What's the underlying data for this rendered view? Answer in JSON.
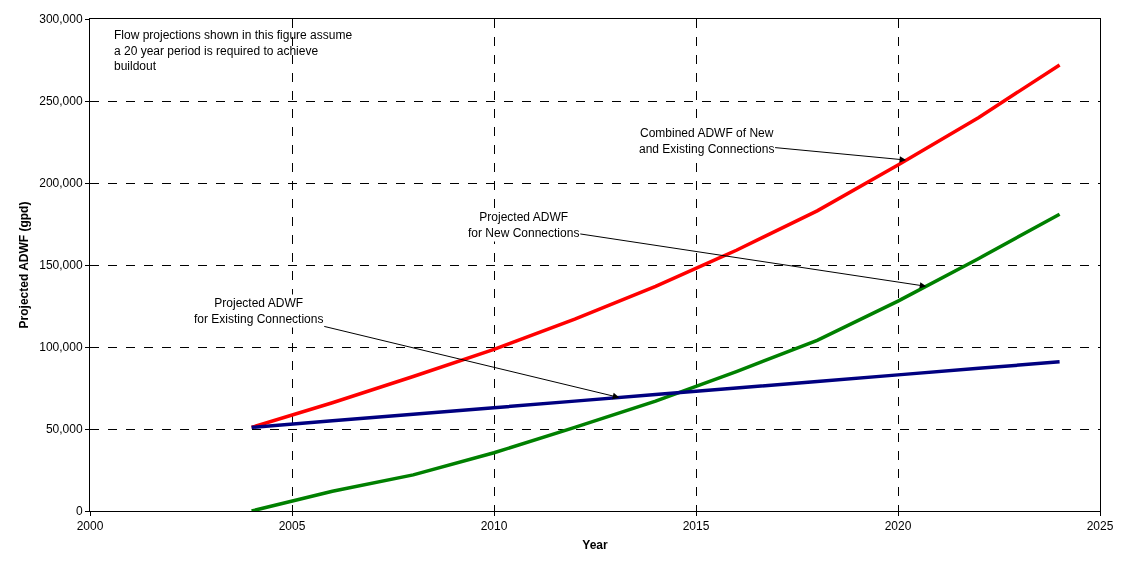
{
  "chart_data": {
    "type": "line",
    "xlabel": "Year",
    "ylabel": "Projected ADWF (gpd)",
    "x": [
      2004,
      2006,
      2008,
      2010,
      2012,
      2014,
      2016,
      2018,
      2020,
      2022,
      2024
    ],
    "series": [
      {
        "color": "#ff0000",
        "values": [
          51000,
          66000,
          82000,
          98500,
          117000,
          137000,
          159000,
          183000,
          211000,
          240000,
          272000
        ]
      },
      {
        "color": "#008000",
        "values": [
          0,
          12000,
          22000,
          35500,
          51000,
          67000,
          85000,
          104000,
          128000,
          154000,
          181000
        ]
      },
      {
        "color": "#000080",
        "values": [
          51000,
          55000,
          59000,
          63000,
          67000,
          71000,
          75000,
          79000,
          83000,
          87000,
          91000
        ]
      }
    ],
    "xlim": [
      2000,
      2025
    ],
    "xticks": [
      2000,
      2005,
      2010,
      2015,
      2020,
      2025
    ],
    "ylim": [
      0,
      300000
    ],
    "yticks": [
      {
        "value": 0,
        "label": "0"
      },
      {
        "value": 50000,
        "label": "50,000"
      },
      {
        "value": 100000,
        "label": "100,000"
      },
      {
        "value": 150000,
        "label": "150,000"
      },
      {
        "value": 200000,
        "label": "200,000"
      },
      {
        "value": 250000,
        "label": "250,000"
      },
      {
        "value": 300000,
        "label": "300,000"
      }
    ],
    "grid": true,
    "line_style": "solid",
    "annotations": [
      "Flow projections shown in this figure assume\na 20 year period is required to achieve\nbuildout",
      {
        "text": "Combined ADWF of New\nand Existing Connections",
        "x": 2020.2,
        "y": 214000
      },
      {
        "text": "Projected ADWF\nfor New Connections",
        "x": 2020.7,
        "y": 137000
      },
      {
        "text": "Projected ADWF\nfor Existing Connections",
        "x": 2013.1,
        "y": 69200
      }
    ]
  }
}
